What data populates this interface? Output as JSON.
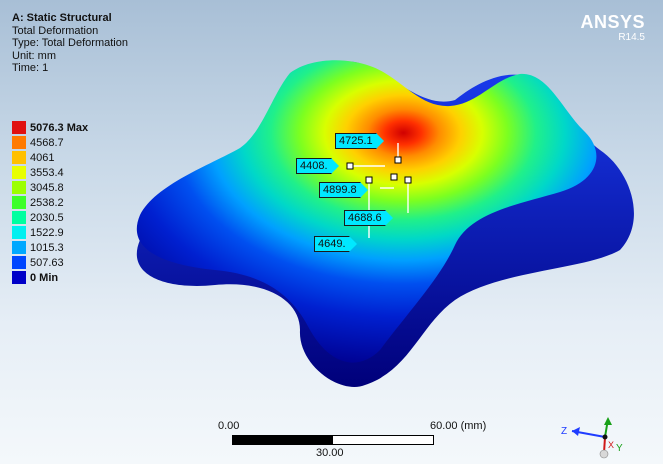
{
  "header": {
    "analysis_title": "A: Static Structural",
    "result_name": "Total Deformation",
    "result_type": "Type: Total Deformation",
    "unit": "Unit: mm",
    "time": "Time: 1"
  },
  "brand": {
    "name": "ANSYS",
    "version": "R14.5"
  },
  "legend": {
    "entries": [
      {
        "label": "5076.3 Max",
        "color": "#e01010"
      },
      {
        "label": "4568.7",
        "color": "#ff7a00"
      },
      {
        "label": "4061",
        "color": "#ffc000"
      },
      {
        "label": "3553.4",
        "color": "#e8ff00"
      },
      {
        "label": "3045.8",
        "color": "#9cff00"
      },
      {
        "label": "2538.2",
        "color": "#3cff2a"
      },
      {
        "label": "2030.5",
        "color": "#00ffa0"
      },
      {
        "label": "1522.9",
        "color": "#00f0f0"
      },
      {
        "label": "1015.3",
        "color": "#00a8ff"
      },
      {
        "label": "507.63",
        "color": "#0046ff"
      },
      {
        "label": "0 Min",
        "color": "#0000c8"
      }
    ]
  },
  "probes": [
    {
      "label": "4725.1"
    },
    {
      "label": "4408."
    },
    {
      "label": "4899.8"
    },
    {
      "label": "4688.6"
    },
    {
      "label": "4649."
    }
  ],
  "scale_bar": {
    "left": "0.00",
    "right": "60.00 (mm)",
    "mid": "30.00"
  },
  "triad": {
    "x": "X",
    "y": "Y",
    "z": "Z"
  },
  "colors": {
    "max": "#e01010",
    "min": "#0000c8",
    "probe": "#00e8ff"
  }
}
